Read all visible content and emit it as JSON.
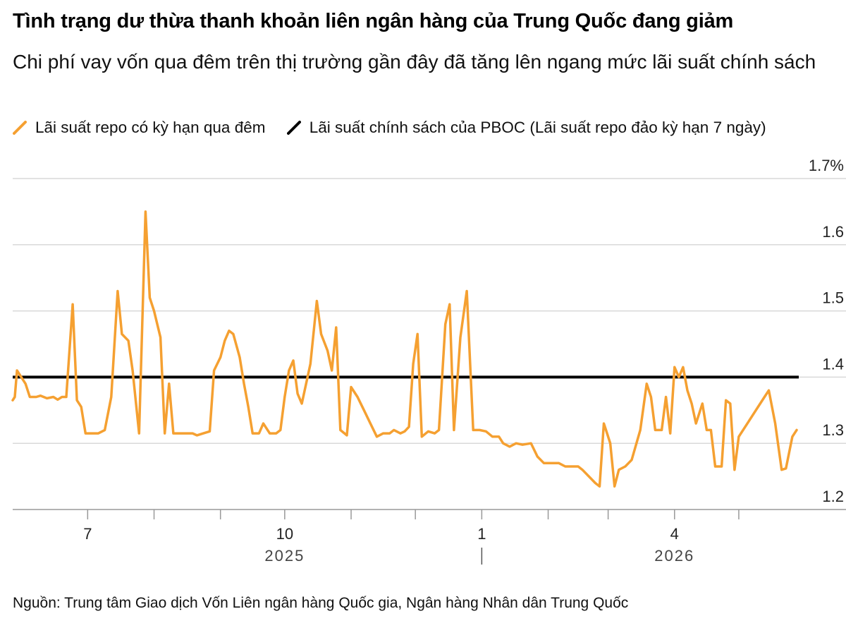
{
  "title": "Tình trạng dư thừa thanh khoản liên ngân hàng của Trung Quốc đang giảm",
  "subtitle": "Chi phí vay vốn qua đêm trên thị trường gần đây đã tăng lên ngang mức lãi suất chính sách",
  "source": "Nguồn: Trung tâm Giao dịch Vốn Liên ngân hàng Quốc gia, Ngân hàng Nhân dân Trung Quốc",
  "colors": {
    "repo": "#F5A031",
    "policy": "#000000",
    "grid": "#d9d9d9",
    "axis": "#999999"
  },
  "chart_data": {
    "type": "line",
    "ylim": [
      1.2,
      1.7
    ],
    "y_ticks": [
      1.2,
      1.3,
      1.4,
      1.5,
      1.6,
      1.7
    ],
    "y_tick_labels": [
      "1.2",
      "1.3",
      "1.4",
      "1.5",
      "1.6",
      "1.7%"
    ],
    "x_range": [
      "2025-05-27",
      "2026-05-29"
    ],
    "x_month_ticks": [
      "2025-07-01",
      "2025-08-01",
      "2025-09-01",
      "2025-10-01",
      "2025-11-01",
      "2025-12-01",
      "2026-01-01",
      "2026-02-01",
      "2026-03-01",
      "2026-04-01",
      "2026-05-01"
    ],
    "x_labels": [
      {
        "date": "2025-07-01",
        "text": "7"
      },
      {
        "date": "2025-10-01",
        "text": "10"
      },
      {
        "date": "2026-01-01",
        "text": "1"
      },
      {
        "date": "2026-04-01",
        "text": "4"
      }
    ],
    "year_labels": [
      {
        "date": "2025-10-01",
        "text": "2025"
      },
      {
        "date": "2026-04-01",
        "text": "2026"
      }
    ],
    "year_divider": "2026-01-01",
    "series": [
      {
        "name": "Lãi suất repo có kỳ hạn qua đêm",
        "points": [
          [
            "2025-05-27",
            1.365
          ],
          [
            "2025-05-28",
            1.37
          ],
          [
            "2025-05-29",
            1.41
          ],
          [
            "2025-05-31",
            1.4
          ],
          [
            "2025-06-02",
            1.39
          ],
          [
            "2025-06-04",
            1.37
          ],
          [
            "2025-06-07",
            1.37
          ],
          [
            "2025-06-09",
            1.372
          ],
          [
            "2025-06-12",
            1.368
          ],
          [
            "2025-06-15",
            1.37
          ],
          [
            "2025-06-17",
            1.366
          ],
          [
            "2025-06-19",
            1.37
          ],
          [
            "2025-06-21",
            1.37
          ],
          [
            "2025-06-24",
            1.51
          ],
          [
            "2025-06-26",
            1.365
          ],
          [
            "2025-06-28",
            1.355
          ],
          [
            "2025-06-30",
            1.315
          ],
          [
            "2025-07-03",
            1.315
          ],
          [
            "2025-07-06",
            1.315
          ],
          [
            "2025-07-09",
            1.32
          ],
          [
            "2025-07-12",
            1.37
          ],
          [
            "2025-07-15",
            1.53
          ],
          [
            "2025-07-17",
            1.465
          ],
          [
            "2025-07-20",
            1.455
          ],
          [
            "2025-07-22",
            1.41
          ],
          [
            "2025-07-25",
            1.315
          ],
          [
            "2025-07-28",
            1.65
          ],
          [
            "2025-07-30",
            1.52
          ],
          [
            "2025-08-01",
            1.5
          ],
          [
            "2025-08-04",
            1.46
          ],
          [
            "2025-08-06",
            1.315
          ],
          [
            "2025-08-08",
            1.39
          ],
          [
            "2025-08-10",
            1.315
          ],
          [
            "2025-08-13",
            1.315
          ],
          [
            "2025-08-16",
            1.315
          ],
          [
            "2025-08-19",
            1.315
          ],
          [
            "2025-08-21",
            1.312
          ],
          [
            "2025-08-24",
            1.315
          ],
          [
            "2025-08-27",
            1.318
          ],
          [
            "2025-08-29",
            1.41
          ],
          [
            "2025-09-01",
            1.43
          ],
          [
            "2025-09-03",
            1.455
          ],
          [
            "2025-09-05",
            1.47
          ],
          [
            "2025-09-07",
            1.465
          ],
          [
            "2025-09-10",
            1.43
          ],
          [
            "2025-09-12",
            1.39
          ],
          [
            "2025-09-14",
            1.355
          ],
          [
            "2025-09-16",
            1.315
          ],
          [
            "2025-09-19",
            1.315
          ],
          [
            "2025-09-21",
            1.33
          ],
          [
            "2025-09-24",
            1.315
          ],
          [
            "2025-09-27",
            1.315
          ],
          [
            "2025-09-29",
            1.32
          ],
          [
            "2025-10-01",
            1.37
          ],
          [
            "2025-10-03",
            1.41
          ],
          [
            "2025-10-05",
            1.425
          ],
          [
            "2025-10-07",
            1.375
          ],
          [
            "2025-10-09",
            1.36
          ],
          [
            "2025-10-11",
            1.39
          ],
          [
            "2025-10-13",
            1.42
          ],
          [
            "2025-10-16",
            1.515
          ],
          [
            "2025-10-18",
            1.465
          ],
          [
            "2025-10-21",
            1.44
          ],
          [
            "2025-10-23",
            1.41
          ],
          [
            "2025-10-25",
            1.475
          ],
          [
            "2025-10-27",
            1.32
          ],
          [
            "2025-10-30",
            1.312
          ],
          [
            "2025-11-01",
            1.385
          ],
          [
            "2025-11-04",
            1.37
          ],
          [
            "2025-11-07",
            1.35
          ],
          [
            "2025-11-10",
            1.33
          ],
          [
            "2025-11-13",
            1.31
          ],
          [
            "2025-11-16",
            1.315
          ],
          [
            "2025-11-19",
            1.315
          ],
          [
            "2025-11-21",
            1.32
          ],
          [
            "2025-11-24",
            1.315
          ],
          [
            "2025-11-26",
            1.318
          ],
          [
            "2025-11-28",
            1.325
          ],
          [
            "2025-11-30",
            1.42
          ],
          [
            "2025-12-02",
            1.465
          ],
          [
            "2025-12-04",
            1.31
          ],
          [
            "2025-12-07",
            1.318
          ],
          [
            "2025-12-10",
            1.315
          ],
          [
            "2025-12-12",
            1.32
          ],
          [
            "2025-12-15",
            1.48
          ],
          [
            "2025-12-17",
            1.51
          ],
          [
            "2025-12-19",
            1.32
          ],
          [
            "2025-12-22",
            1.46
          ],
          [
            "2025-12-25",
            1.53
          ],
          [
            "2025-12-28",
            1.32
          ],
          [
            "2025-12-31",
            1.32
          ],
          [
            "2026-01-03",
            1.318
          ],
          [
            "2026-01-06",
            1.31
          ],
          [
            "2026-01-09",
            1.31
          ],
          [
            "2026-01-11",
            1.3
          ],
          [
            "2026-01-14",
            1.295
          ],
          [
            "2026-01-17",
            1.3
          ],
          [
            "2026-01-20",
            1.298
          ],
          [
            "2026-01-24",
            1.3
          ],
          [
            "2026-01-27",
            1.28
          ],
          [
            "2026-01-30",
            1.27
          ],
          [
            "2026-02-03",
            1.27
          ],
          [
            "2026-02-06",
            1.27
          ],
          [
            "2026-02-09",
            1.265
          ],
          [
            "2026-02-12",
            1.265
          ],
          [
            "2026-02-15",
            1.265
          ],
          [
            "2026-02-17",
            1.26
          ],
          [
            "2026-02-20",
            1.25
          ],
          [
            "2026-02-23",
            1.24
          ],
          [
            "2026-02-25",
            1.235
          ],
          [
            "2026-02-27",
            1.33
          ],
          [
            "2026-02-28",
            1.32
          ],
          [
            "2026-03-02",
            1.3
          ],
          [
            "2026-03-04",
            1.235
          ],
          [
            "2026-03-06",
            1.26
          ],
          [
            "2026-03-09",
            1.265
          ],
          [
            "2026-03-12",
            1.275
          ],
          [
            "2026-03-16",
            1.32
          ],
          [
            "2026-03-19",
            1.39
          ],
          [
            "2026-03-21",
            1.37
          ],
          [
            "2026-03-23",
            1.32
          ],
          [
            "2026-03-26",
            1.32
          ],
          [
            "2026-03-28",
            1.37
          ],
          [
            "2026-03-30",
            1.315
          ],
          [
            "2026-04-01",
            1.415
          ],
          [
            "2026-04-03",
            1.4
          ],
          [
            "2026-04-05",
            1.415
          ],
          [
            "2026-04-07",
            1.38
          ],
          [
            "2026-04-09",
            1.36
          ],
          [
            "2026-04-11",
            1.33
          ],
          [
            "2026-04-14",
            1.36
          ],
          [
            "2026-04-16",
            1.32
          ],
          [
            "2026-04-18",
            1.32
          ],
          [
            "2026-04-20",
            1.265
          ],
          [
            "2026-04-23",
            1.265
          ],
          [
            "2026-04-25",
            1.365
          ],
          [
            "2026-04-27",
            1.36
          ],
          [
            "2026-04-29",
            1.26
          ],
          [
            "2026-05-01",
            1.31
          ],
          [
            "2026-05-05",
            1.33
          ],
          [
            "2026-05-09",
            1.35
          ],
          [
            "2026-05-13",
            1.37
          ],
          [
            "2026-05-15",
            1.38
          ],
          [
            "2026-05-18",
            1.33
          ],
          [
            "2026-05-21",
            1.26
          ],
          [
            "2026-05-23",
            1.262
          ],
          [
            "2026-05-26",
            1.31
          ],
          [
            "2026-05-28",
            1.32
          ]
        ]
      },
      {
        "name": "Lãi suất chính sách của PBOC (Lãi suất repo đảo kỳ hạn 7 ngày)",
        "points": [
          [
            "2025-05-27",
            1.4
          ],
          [
            "2026-05-29",
            1.4
          ]
        ]
      }
    ]
  }
}
